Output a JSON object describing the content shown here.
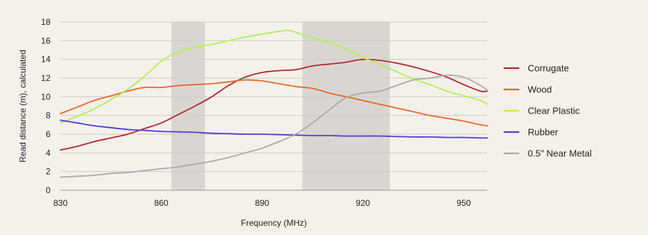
{
  "chart_data": {
    "type": "line",
    "title": "",
    "xlabel": "Frequency (MHz)",
    "ylabel": "Read distance (m), calculated",
    "xlim": [
      830,
      957
    ],
    "ylim": [
      0,
      18
    ],
    "x_ticks": [
      830,
      860,
      890,
      920,
      950
    ],
    "y_ticks": [
      0,
      2,
      4,
      6,
      8,
      10,
      12,
      14,
      16,
      18
    ],
    "grid": "horizontal",
    "legend_position": "right",
    "shaded_bands": [
      {
        "from": 863,
        "to": 873,
        "color": "#d9d6d1"
      },
      {
        "from": 902,
        "to": 928,
        "color": "#d9d6d1"
      }
    ],
    "series": [
      {
        "name": "Corrugate",
        "color": "#b3262b",
        "x": [
          830,
          835,
          840,
          845,
          850,
          855,
          860,
          865,
          870,
          875,
          880,
          885,
          890,
          895,
          900,
          905,
          910,
          915,
          920,
          925,
          930,
          935,
          940,
          945,
          950,
          955,
          957
        ],
        "y": [
          4.3,
          4.7,
          5.2,
          5.6,
          6.0,
          6.6,
          7.2,
          8.1,
          9.0,
          10.0,
          11.2,
          12.1,
          12.6,
          12.8,
          12.9,
          13.3,
          13.5,
          13.7,
          14.0,
          13.9,
          13.6,
          13.2,
          12.7,
          12.1,
          11.3,
          10.6,
          10.6
        ]
      },
      {
        "name": "Wood",
        "color": "#e8672a",
        "x": [
          830,
          835,
          840,
          845,
          850,
          855,
          860,
          865,
          870,
          875,
          880,
          885,
          890,
          895,
          900,
          905,
          910,
          915,
          920,
          925,
          930,
          935,
          940,
          945,
          950,
          955,
          957
        ],
        "y": [
          8.2,
          8.9,
          9.6,
          10.1,
          10.6,
          11.0,
          11.0,
          11.2,
          11.3,
          11.4,
          11.6,
          11.8,
          11.7,
          11.4,
          11.1,
          10.9,
          10.4,
          10.0,
          9.6,
          9.2,
          8.8,
          8.4,
          8.0,
          7.7,
          7.4,
          7.0,
          6.9
        ]
      },
      {
        "name": "Clear Plastic",
        "color": "#aef255",
        "x": [
          830,
          835,
          840,
          845,
          850,
          855,
          860,
          865,
          870,
          875,
          880,
          885,
          890,
          895,
          898,
          900,
          905,
          910,
          915,
          920,
          925,
          930,
          935,
          940,
          945,
          950,
          955,
          957
        ],
        "y": [
          7.2,
          7.9,
          8.7,
          9.7,
          10.8,
          12.2,
          13.8,
          14.8,
          15.3,
          15.6,
          16.0,
          16.4,
          16.7,
          17.0,
          17.1,
          16.9,
          16.3,
          15.8,
          15.1,
          14.2,
          13.5,
          12.7,
          11.9,
          11.3,
          10.6,
          10.1,
          9.6,
          9.2
        ]
      },
      {
        "name": "Rubber",
        "color": "#4a3ed6",
        "x": [
          830,
          835,
          840,
          845,
          850,
          855,
          860,
          865,
          870,
          875,
          880,
          885,
          890,
          895,
          900,
          905,
          910,
          915,
          920,
          925,
          930,
          935,
          940,
          945,
          950,
          955,
          957
        ],
        "y": [
          7.5,
          7.2,
          6.9,
          6.7,
          6.5,
          6.4,
          6.3,
          6.25,
          6.2,
          6.1,
          6.05,
          6.0,
          6.0,
          5.95,
          5.9,
          5.85,
          5.85,
          5.8,
          5.8,
          5.8,
          5.75,
          5.7,
          5.7,
          5.65,
          5.65,
          5.6,
          5.6
        ]
      },
      {
        "name": "0.5\" Near Metal",
        "color": "#aaaaaa",
        "x": [
          830,
          835,
          840,
          845,
          850,
          855,
          860,
          865,
          870,
          875,
          880,
          885,
          890,
          895,
          900,
          905,
          910,
          915,
          920,
          925,
          930,
          935,
          940,
          945,
          950,
          955,
          957
        ],
        "y": [
          1.4,
          1.5,
          1.6,
          1.8,
          1.9,
          2.1,
          2.3,
          2.5,
          2.8,
          3.1,
          3.5,
          4.0,
          4.5,
          5.2,
          6.0,
          7.2,
          8.6,
          9.9,
          10.4,
          10.6,
          11.2,
          11.8,
          12.0,
          12.3,
          12.1,
          11.2,
          10.7
        ]
      }
    ]
  }
}
